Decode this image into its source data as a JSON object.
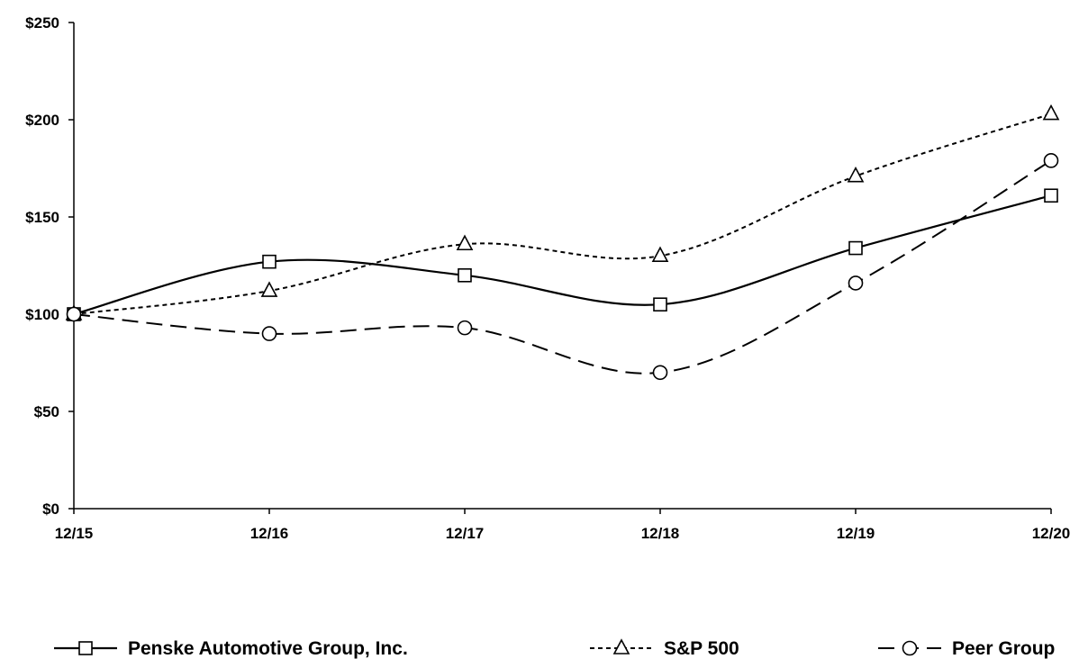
{
  "chart_data": {
    "type": "line",
    "categories": [
      "12/15",
      "12/16",
      "12/17",
      "12/18",
      "12/19",
      "12/20"
    ],
    "series": [
      {
        "name": "Penske Automotive Group, Inc.",
        "values": [
          100,
          127,
          120,
          105,
          134,
          161
        ],
        "marker": "square",
        "dash": "solid"
      },
      {
        "name": "S&P 500",
        "values": [
          100,
          112,
          136,
          130,
          171,
          203
        ],
        "marker": "triangle",
        "dash": "dotted"
      },
      {
        "name": "Peer Group",
        "values": [
          100,
          90,
          93,
          70,
          116,
          179
        ],
        "marker": "circle",
        "dash": "dashed"
      }
    ],
    "y_ticks": [
      "$0",
      "$50",
      "$100",
      "$150",
      "$200",
      "$250"
    ],
    "ylim": [
      0,
      250
    ],
    "grid": false,
    "legend_position": "bottom",
    "line_color": "#000000"
  }
}
